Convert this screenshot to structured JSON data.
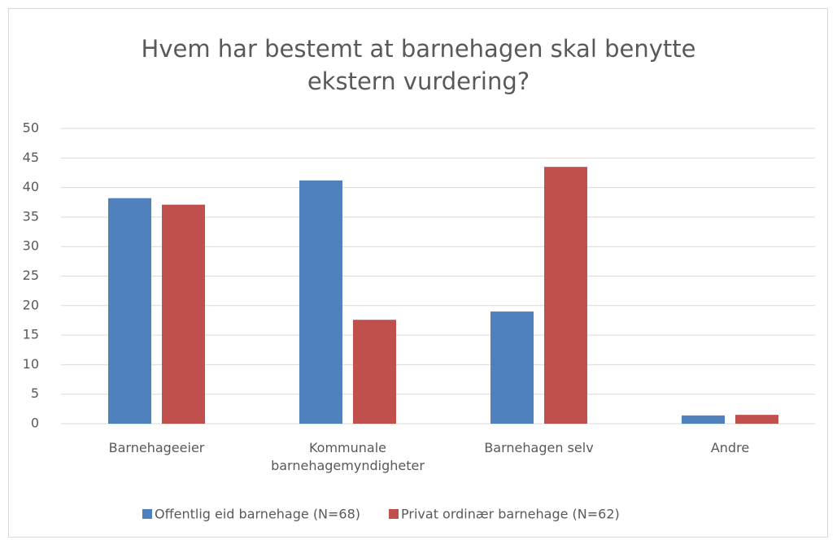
{
  "chart_data": {
    "type": "bar",
    "title": "Hvem har bestemt at barnehagen skal benytte ekstern vurdering?",
    "categories": [
      "Barnehageeier",
      "Kommunale barnehagemyndigheter",
      "Barnehagen selv",
      "Andre"
    ],
    "series": [
      {
        "name": "Offentlig eid barnehage (N=68)",
        "color": "#4f81bd",
        "values": [
          38.2,
          41.2,
          19.0,
          1.4
        ]
      },
      {
        "name": "Privat ordinær barnehage (N=62)",
        "color": "#c0504d",
        "values": [
          37.1,
          17.6,
          43.5,
          1.5
        ]
      }
    ],
    "ylim": [
      0,
      50
    ],
    "yticks": [
      0,
      5,
      10,
      15,
      20,
      25,
      30,
      35,
      40,
      45,
      50
    ],
    "grid": true,
    "legend": "bottom"
  }
}
